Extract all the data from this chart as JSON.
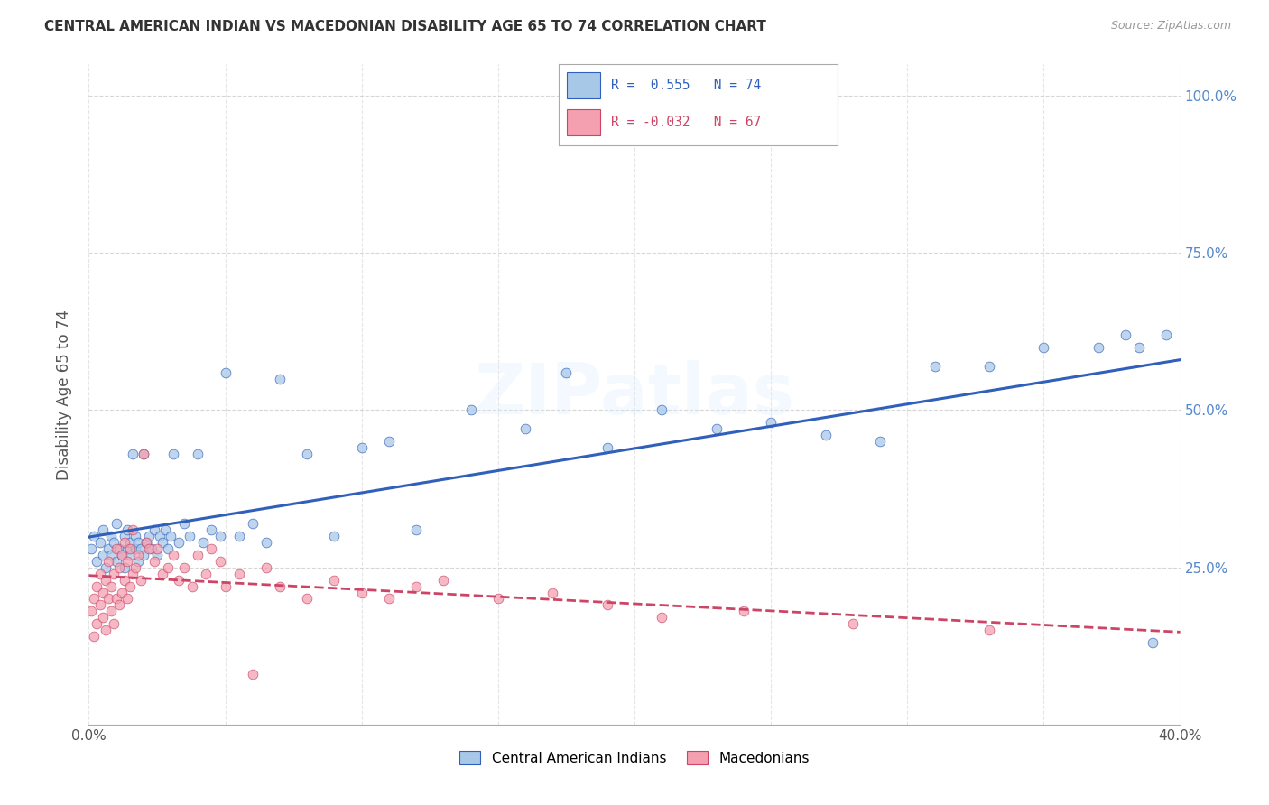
{
  "title": "CENTRAL AMERICAN INDIAN VS MACEDONIAN DISABILITY AGE 65 TO 74 CORRELATION CHART",
  "source": "Source: ZipAtlas.com",
  "ylabel": "Disability Age 65 to 74",
  "xlim": [
    0.0,
    0.4
  ],
  "ylim": [
    0.0,
    1.05
  ],
  "legend_blue_R": "R =  0.555",
  "legend_blue_N": "N = 74",
  "legend_pink_R": "R = -0.032",
  "legend_pink_N": "N = 67",
  "blue_color": "#A8C8E8",
  "pink_color": "#F4A0B0",
  "trendline_blue": "#3060BB",
  "trendline_pink": "#CC4466",
  "watermark": "ZIPatlas",
  "blue_scatter_x": [
    0.001,
    0.002,
    0.003,
    0.004,
    0.005,
    0.005,
    0.006,
    0.007,
    0.008,
    0.008,
    0.009,
    0.01,
    0.01,
    0.011,
    0.012,
    0.013,
    0.013,
    0.014,
    0.014,
    0.015,
    0.015,
    0.016,
    0.017,
    0.017,
    0.018,
    0.018,
    0.019,
    0.02,
    0.02,
    0.021,
    0.022,
    0.023,
    0.024,
    0.025,
    0.026,
    0.027,
    0.028,
    0.029,
    0.03,
    0.031,
    0.033,
    0.035,
    0.037,
    0.04,
    0.042,
    0.045,
    0.048,
    0.05,
    0.055,
    0.06,
    0.065,
    0.07,
    0.08,
    0.09,
    0.1,
    0.11,
    0.12,
    0.14,
    0.16,
    0.175,
    0.19,
    0.21,
    0.23,
    0.25,
    0.27,
    0.29,
    0.31,
    0.33,
    0.35,
    0.37,
    0.38,
    0.385,
    0.39,
    0.395
  ],
  "blue_scatter_y": [
    0.28,
    0.3,
    0.26,
    0.29,
    0.27,
    0.31,
    0.25,
    0.28,
    0.3,
    0.27,
    0.29,
    0.26,
    0.32,
    0.28,
    0.27,
    0.3,
    0.25,
    0.28,
    0.31,
    0.27,
    0.29,
    0.43,
    0.28,
    0.3,
    0.26,
    0.29,
    0.28,
    0.27,
    0.43,
    0.29,
    0.3,
    0.28,
    0.31,
    0.27,
    0.3,
    0.29,
    0.31,
    0.28,
    0.3,
    0.43,
    0.29,
    0.32,
    0.3,
    0.43,
    0.29,
    0.31,
    0.3,
    0.56,
    0.3,
    0.32,
    0.29,
    0.55,
    0.43,
    0.3,
    0.44,
    0.45,
    0.31,
    0.5,
    0.47,
    0.56,
    0.44,
    0.5,
    0.47,
    0.48,
    0.46,
    0.45,
    0.57,
    0.57,
    0.6,
    0.6,
    0.62,
    0.6,
    0.13,
    0.62
  ],
  "pink_scatter_x": [
    0.001,
    0.002,
    0.002,
    0.003,
    0.003,
    0.004,
    0.004,
    0.005,
    0.005,
    0.006,
    0.006,
    0.007,
    0.007,
    0.008,
    0.008,
    0.009,
    0.009,
    0.01,
    0.01,
    0.011,
    0.011,
    0.012,
    0.012,
    0.013,
    0.013,
    0.014,
    0.014,
    0.015,
    0.015,
    0.016,
    0.016,
    0.017,
    0.018,
    0.019,
    0.02,
    0.021,
    0.022,
    0.024,
    0.025,
    0.027,
    0.029,
    0.031,
    0.033,
    0.035,
    0.038,
    0.04,
    0.043,
    0.045,
    0.048,
    0.05,
    0.055,
    0.06,
    0.065,
    0.07,
    0.08,
    0.09,
    0.1,
    0.11,
    0.12,
    0.13,
    0.15,
    0.17,
    0.19,
    0.21,
    0.24,
    0.28,
    0.33
  ],
  "pink_scatter_y": [
    0.18,
    0.2,
    0.14,
    0.22,
    0.16,
    0.19,
    0.24,
    0.17,
    0.21,
    0.15,
    0.23,
    0.2,
    0.26,
    0.18,
    0.22,
    0.16,
    0.24,
    0.2,
    0.28,
    0.19,
    0.25,
    0.21,
    0.27,
    0.23,
    0.29,
    0.2,
    0.26,
    0.22,
    0.28,
    0.24,
    0.31,
    0.25,
    0.27,
    0.23,
    0.43,
    0.29,
    0.28,
    0.26,
    0.28,
    0.24,
    0.25,
    0.27,
    0.23,
    0.25,
    0.22,
    0.27,
    0.24,
    0.28,
    0.26,
    0.22,
    0.24,
    0.08,
    0.25,
    0.22,
    0.2,
    0.23,
    0.21,
    0.2,
    0.22,
    0.23,
    0.2,
    0.21,
    0.19,
    0.17,
    0.18,
    0.16,
    0.15
  ],
  "background_color": "#FFFFFF",
  "grid_color": "#CCCCCC",
  "ytick_vals": [
    0.25,
    0.5,
    0.75,
    1.0
  ],
  "ytick_labels": [
    "25.0%",
    "50.0%",
    "75.0%",
    "100.0%"
  ],
  "xtick_show": [
    0.0,
    0.4
  ],
  "xtick_all": [
    0.0,
    0.05,
    0.1,
    0.15,
    0.2,
    0.25,
    0.3,
    0.35,
    0.4
  ]
}
